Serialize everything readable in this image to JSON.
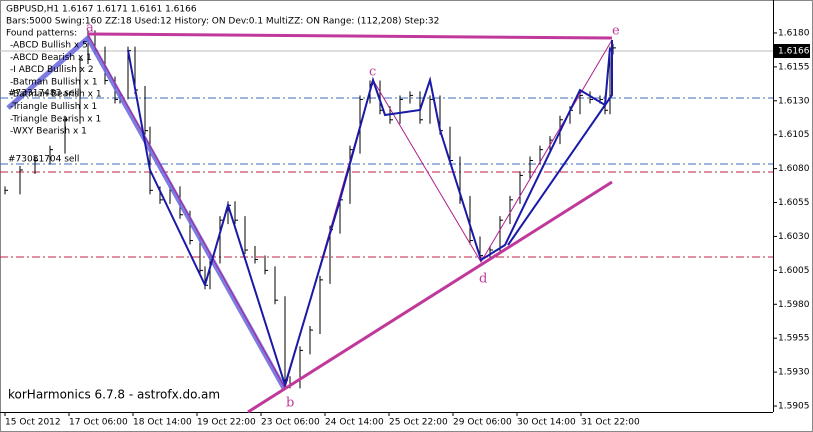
{
  "chart_data": {
    "type": "bars",
    "header": "GBPUSD,H1  1.6167 1.6171 1.6161 1.6166",
    "settings_line": "Bars:5000  Swing:160  ZZ:18  Used:12  History: ON Dev:0.1  MultiZZ: ON  Range: (112,208)  Step:32",
    "patterns_title": "Found patterns:",
    "patterns": [
      {
        "label": "-ABCD Bullish x 5",
        "color": "#22b422"
      },
      {
        "label": "-ABCD Bearish x 1",
        "color": "#e02020"
      },
      {
        "label": "-I ABCD Bullish x 2",
        "color": "#22b422"
      },
      {
        "label": "-Batman Bullish x 1",
        "color": "#22b422"
      },
      {
        "label": "-Batman Bearish x 1",
        "color": "#e02020"
      },
      {
        "label": "-Triangle Bullish x 1",
        "color": "#22b422"
      },
      {
        "label": "-Triangle Bearish x 1",
        "color": "#e02020"
      },
      {
        "label": "-WXY Bearish x 1",
        "color": "#e02020"
      }
    ],
    "orders": [
      "#73317483 sell",
      "#73081704 sell"
    ],
    "footer": "korHarmonics 6.7.8 - astrofx.do.am",
    "points": [
      "a",
      "b",
      "c",
      "d",
      "e"
    ],
    "current_price": "1.6166",
    "color": "#000000",
    "x": [
      5,
      20,
      35,
      50,
      65,
      80,
      88,
      95,
      105,
      115,
      120,
      128,
      135,
      145,
      150,
      160,
      170,
      180,
      190,
      200,
      205,
      210,
      220,
      228,
      235,
      245,
      255,
      265,
      275,
      285,
      290,
      300,
      310,
      320,
      330,
      340,
      350,
      360,
      370,
      380,
      390,
      400,
      410,
      420,
      430,
      440,
      450,
      460,
      470,
      480,
      490,
      500,
      510,
      520,
      530,
      540,
      550,
      560,
      570,
      580,
      590,
      600,
      605,
      610,
      613
    ],
    "values": [
      1.6064,
      1.6079,
      1.6086,
      1.6094,
      1.6116,
      1.616,
      1.6179,
      1.6167,
      1.6145,
      1.6131,
      1.6134,
      1.6167,
      1.6138,
      1.6108,
      1.6064,
      1.6057,
      1.6064,
      1.6046,
      1.6027,
      1.6005,
      1.5994,
      1.6013,
      1.6042,
      1.6053,
      1.6042,
      1.602,
      1.6013,
      1.6005,
      1.5983,
      1.5924,
      1.5921,
      1.5946,
      1.5961,
      1.5998,
      1.6035,
      1.6057,
      1.6094,
      1.6131,
      1.6142,
      1.6123,
      1.6116,
      1.6131,
      1.6134,
      1.6116,
      1.6131,
      1.6108,
      1.6086,
      1.6057,
      1.6027,
      1.6016,
      1.602,
      1.6042,
      1.6057,
      1.6075,
      1.6086,
      1.6094,
      1.6101,
      1.6116,
      1.6123,
      1.6134,
      1.6131,
      1.6131,
      1.6123,
      1.6167,
      1.6169
    ],
    "xlim": [
      0,
      773
    ],
    "xticks": [
      {
        "value": 5,
        "label": "15 Oct 2012"
      },
      {
        "value": 69,
        "label": "17 Oct 06:00"
      },
      {
        "value": 133,
        "label": "18 Oct 14:00"
      },
      {
        "value": 197,
        "label": "19 Oct 22:00"
      },
      {
        "value": 261,
        "label": "23 Oct 06:00"
      },
      {
        "value": 325,
        "label": "24 Oct 14:00"
      },
      {
        "value": 389,
        "label": "25 Oct 22:00"
      },
      {
        "value": 453,
        "label": "29 Oct 06:00"
      },
      {
        "value": 517,
        "label": "30 Oct 14:00"
      },
      {
        "value": 581,
        "label": "31 Oct 22:00"
      }
    ],
    "ylim": [
      1.59006,
      1.62043
    ],
    "yticks": [
      {
        "value": 1.618,
        "label": "1.6180"
      },
      1.6155,
      {
        "value": 1.613,
        "label": "1.6130"
      },
      1.6105,
      {
        "value": 1.608,
        "label": "1.6080"
      },
      1.6055,
      {
        "value": 1.603,
        "label": "1.6030"
      },
      1.6005,
      {
        "value": 1.598,
        "label": "1.5980"
      },
      1.5955,
      {
        "value": 1.593,
        "label": "1.5930"
      },
      1.5905
    ]
  }
}
